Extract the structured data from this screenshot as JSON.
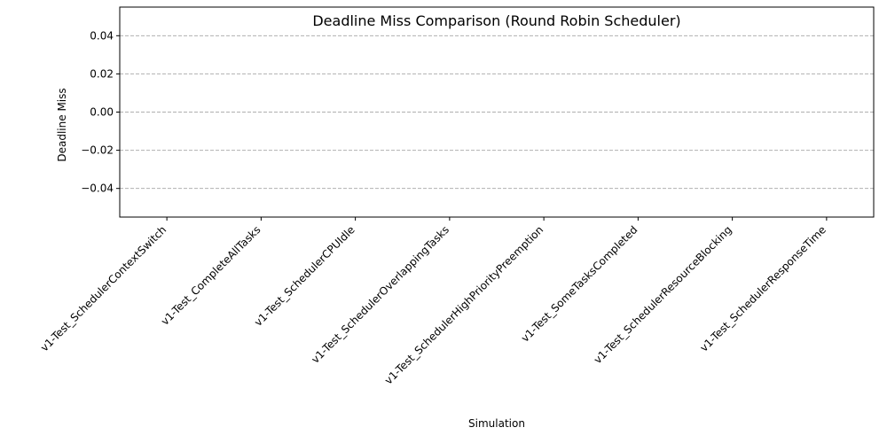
{
  "chart_data": {
    "type": "bar",
    "title": "Deadline Miss Comparison (Round Robin Scheduler)",
    "xlabel": "Simulation",
    "ylabel": "Deadline Miss",
    "categories": [
      "v1-Test_SchedulerContextSwitch",
      "v1-Test_CompleteAllTasks",
      "v1-Test_SchedulerCPUIdle",
      "v1-Test_SchedulerOverlappingTasks",
      "v1-Test_SchedulerHighPriorityPreemption",
      "v1-Test_SomeTasksCompleted",
      "v1-Test_SchedulerResourceBlocking",
      "v1-Test_SchedulerResponseTime"
    ],
    "values": [
      0,
      0,
      0,
      0,
      0,
      0,
      0,
      0
    ],
    "ylim": [
      -0.055,
      0.055
    ],
    "yticks": [
      -0.04,
      -0.02,
      0.0,
      0.02,
      0.04
    ],
    "ytick_labels": [
      "−0.04",
      "−0.02",
      "0.00",
      "0.02",
      "0.04"
    ],
    "grid": "horizontal dashed",
    "grid_color": "#b0b0b0",
    "bar_color": "#1f77b4"
  }
}
